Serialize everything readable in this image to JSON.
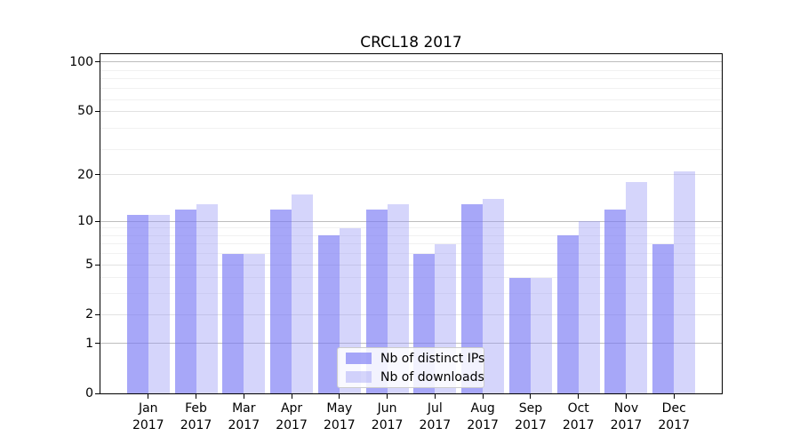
{
  "chart_data": {
    "type": "bar",
    "title": "CRCL18 2017",
    "x": {
      "categories": [
        "Jan",
        "Feb",
        "Mar",
        "Apr",
        "May",
        "Jun",
        "Jul",
        "Aug",
        "Sep",
        "Oct",
        "Nov",
        "Dec"
      ],
      "year_label": "2017"
    },
    "y": {
      "scale": "log1p",
      "tick_values": [
        0,
        1,
        2,
        5,
        10,
        20,
        50,
        100
      ],
      "emphasized_gridlines": [
        1,
        10,
        100
      ],
      "minor_gridline_values": [
        3,
        4,
        6,
        7,
        8,
        9,
        29,
        39,
        59,
        69,
        79,
        89
      ],
      "top_value": 112,
      "grid": true
    },
    "series": [
      {
        "name": "Nb of distinct IPs",
        "color": "rgba(120,120,245,0.65)",
        "values": [
          11,
          12,
          6,
          12,
          8,
          12,
          6,
          13,
          4,
          8,
          12,
          7
        ]
      },
      {
        "name": "Nb of downloads",
        "color": "rgba(150,150,245,0.40)",
        "values": [
          11,
          13,
          6,
          15,
          9,
          13,
          7,
          14,
          4,
          10,
          18,
          21
        ]
      }
    ],
    "legend": {
      "position": "lower center"
    }
  },
  "colors": {
    "background": "#ffffff",
    "spine": "#000000",
    "grid_emphasized": "#bdbdbd",
    "grid_labeled": "#e2e2e2",
    "grid_minor": "#f1f1f1",
    "bar_ips": "rgba(120,120,245,0.65)",
    "bar_downloads": "rgba(150,150,245,0.40)"
  }
}
